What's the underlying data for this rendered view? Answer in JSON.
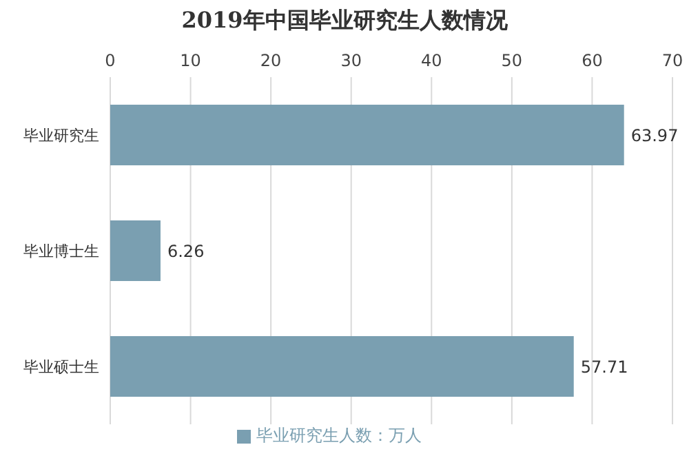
{
  "chart_data": {
    "type": "bar",
    "orientation": "horizontal",
    "title": "2019年中国毕业研究生人数情况",
    "categories": [
      "毕业研究生",
      "毕业博士生",
      "毕业硕士生"
    ],
    "series": [
      {
        "name": "毕业研究生人数：万人",
        "color": "#7a9fb1",
        "values": [
          63.97,
          6.26,
          57.71
        ]
      }
    ],
    "xlim": [
      0,
      70
    ],
    "xticks": [
      0,
      10,
      20,
      30,
      40,
      50,
      60,
      70
    ],
    "grid": "x",
    "legend": "bottom",
    "data_labels": true
  }
}
